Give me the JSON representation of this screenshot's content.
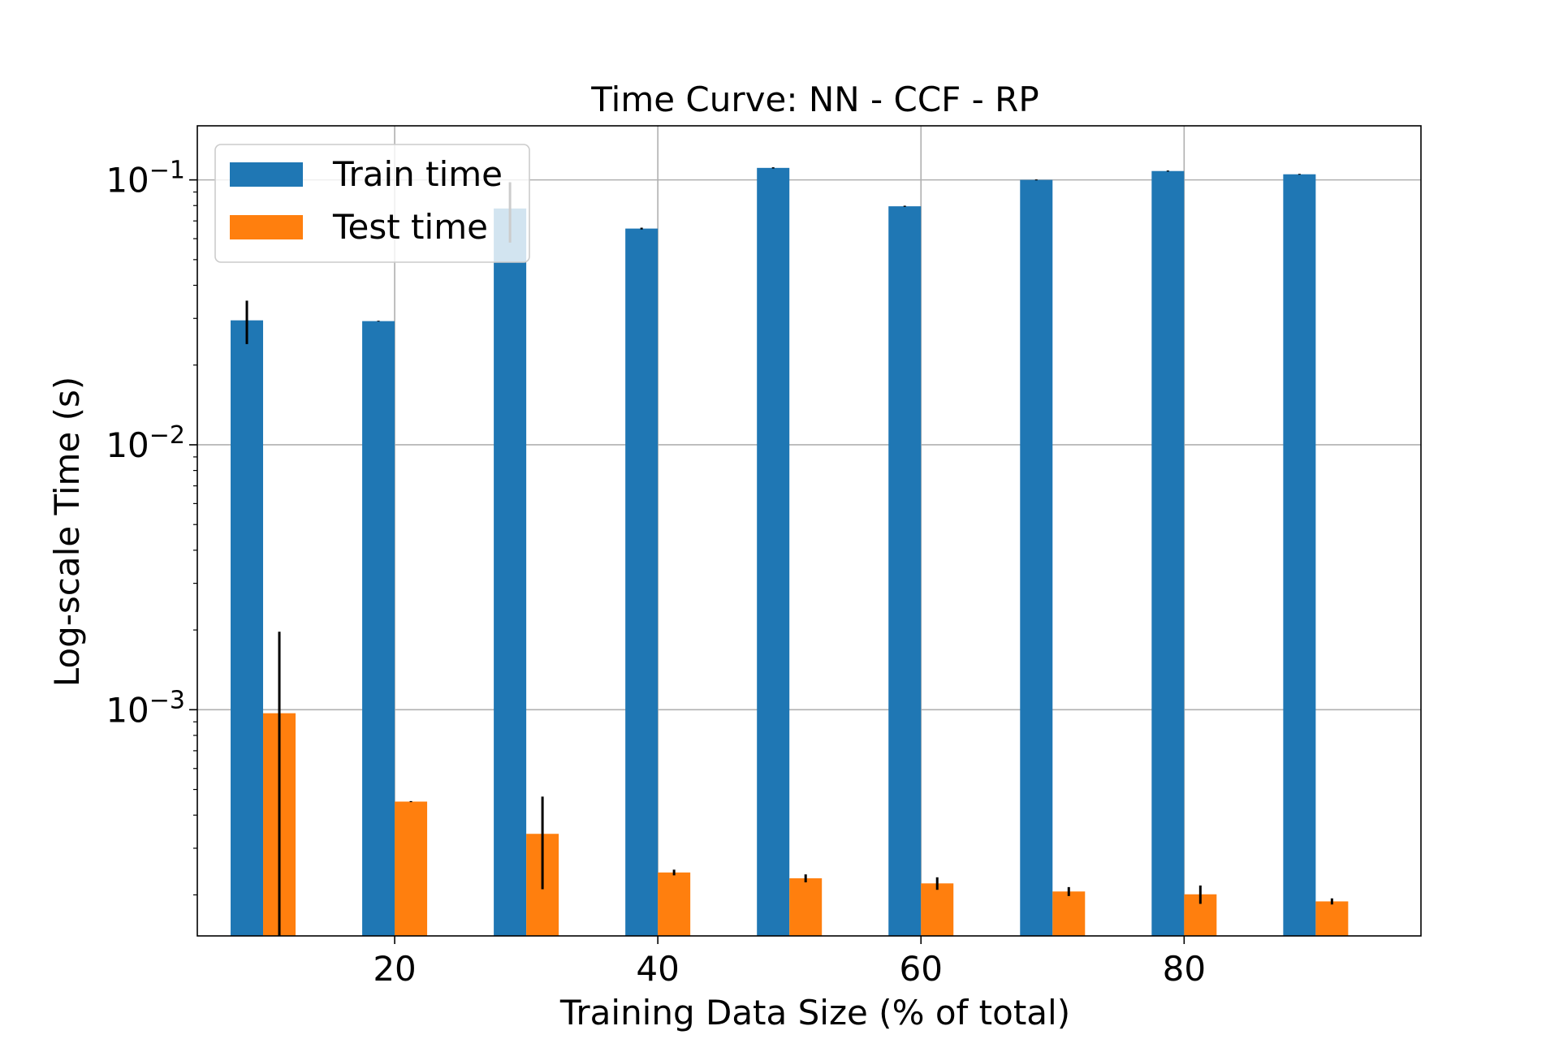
{
  "chart_data": {
    "type": "bar",
    "title": "Time Curve: NN - CCF - RP",
    "xlabel": "Training Data Size (% of total)",
    "ylabel": "Log-scale Time (s)",
    "y_scale": "log",
    "xlim": [
      5,
      98
    ],
    "ylim": [
      0.00014,
      0.16
    ],
    "x_ticks": [
      20,
      40,
      60,
      80
    ],
    "x_tick_labels": [
      "20",
      "40",
      "60",
      "80"
    ],
    "y_ticks": [
      0.001,
      0.01,
      0.1
    ],
    "y_tick_labels": [
      {
        "base": "10",
        "exp": "−3"
      },
      {
        "base": "10",
        "exp": "−2"
      },
      {
        "base": "10",
        "exp": "−1"
      }
    ],
    "grid": true,
    "legend_position": "upper-left",
    "x": [
      10,
      20,
      30,
      40,
      50,
      60,
      70,
      80,
      90
    ],
    "series": [
      {
        "name": "Train time",
        "color": "#1f77b4",
        "values": [
          0.0295,
          0.0293,
          0.078,
          0.0655,
          0.111,
          0.0795,
          0.1,
          0.108,
          0.105
        ],
        "errors": [
          0.0055,
          0.0001,
          0.02,
          0.0005,
          0.0006,
          0.0004,
          0.0004,
          0.0005,
          0.0004
        ]
      },
      {
        "name": "Test time",
        "color": "#ff7f0e",
        "values": [
          0.00097,
          0.00045,
          0.00034,
          0.000243,
          0.000231,
          0.000221,
          0.000206,
          0.000201,
          0.000189
        ],
        "errors": [
          0.001,
          2e-06,
          0.00013,
          6e-06,
          8e-06,
          1.2e-05,
          8e-06,
          1.6e-05,
          5e-06
        ]
      }
    ]
  }
}
